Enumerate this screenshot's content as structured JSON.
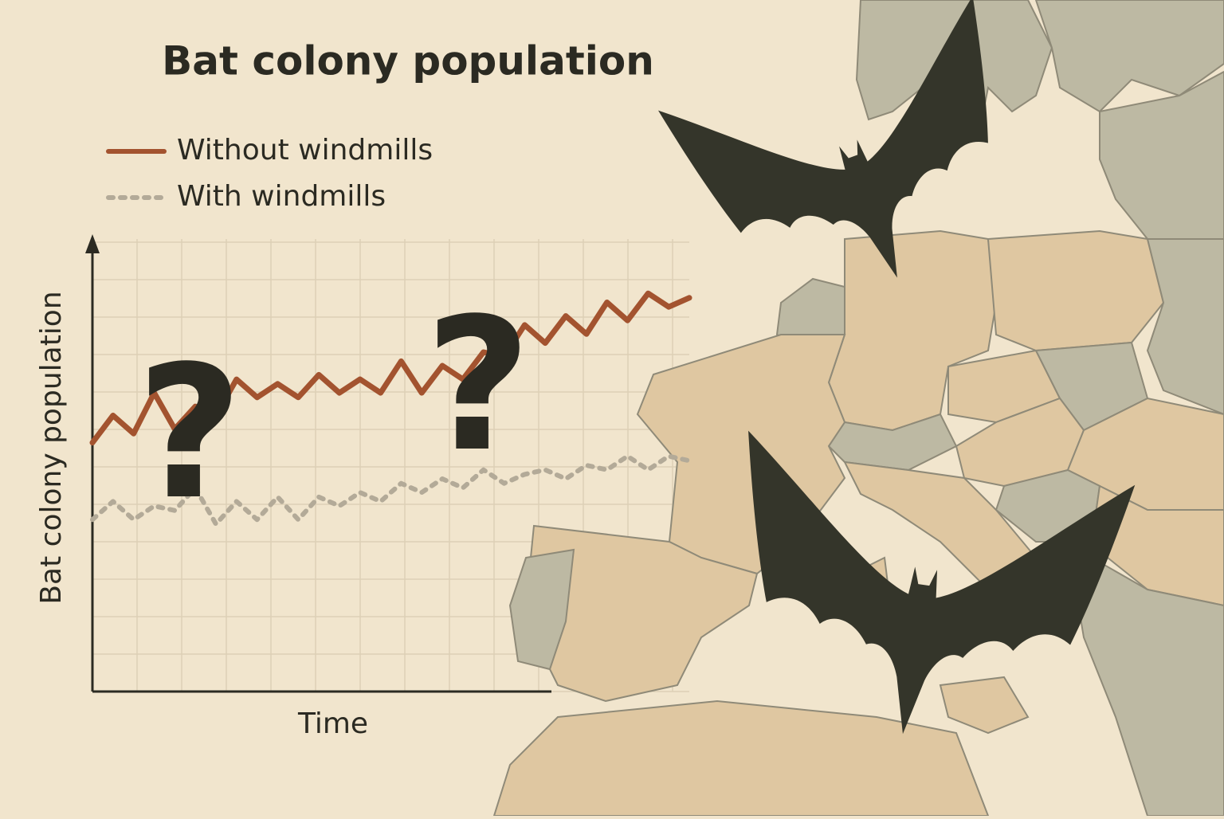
{
  "chart_data": {
    "type": "line",
    "title": "Bat colony population",
    "y_label": "Bat colony population",
    "x_label": "Time",
    "ylim": [
      0,
      100
    ],
    "grid": true,
    "legend": "top-left",
    "annotations": [
      "?",
      "?"
    ],
    "series": [
      {
        "name": "Without windmills",
        "color": "#a3532f",
        "style": "solid",
        "values": [
          55,
          61,
          57,
          66,
          58,
          63,
          61,
          69,
          65,
          68,
          65,
          70,
          66,
          69,
          66,
          73,
          66,
          72,
          69,
          75,
          74,
          81,
          77,
          83,
          79,
          86,
          82,
          88,
          85,
          87
        ]
      },
      {
        "name": "With windmills",
        "color": "#b3aa98",
        "style": "dotted",
        "values": [
          38,
          42,
          38,
          41,
          40,
          45,
          37,
          42,
          38,
          43,
          38,
          43,
          41,
          44,
          42,
          46,
          44,
          47,
          45,
          49,
          46,
          48,
          49,
          47,
          50,
          49,
          52,
          49,
          52,
          51
        ]
      }
    ]
  }
}
